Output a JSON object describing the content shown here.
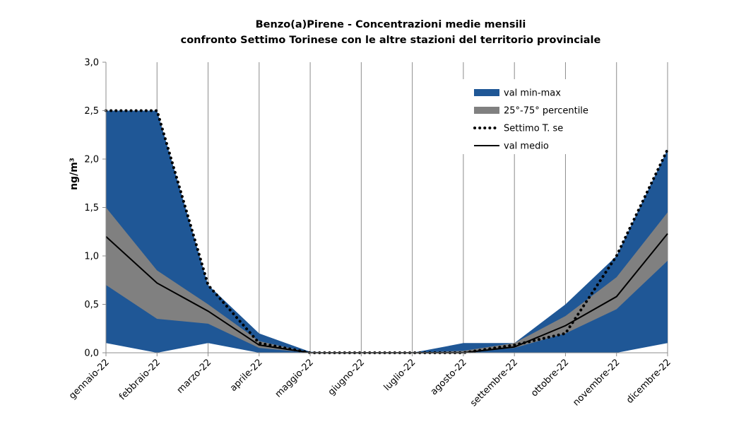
{
  "chart_data": {
    "type": "area",
    "title": "Benzo(a)Pirene - Concentrazioni medie mensili",
    "subtitle": "confronto Settimo Torinese con le altre stazioni del territorio provinciale",
    "ylabel": "ng/m³",
    "xlabel": "",
    "ylim": [
      0,
      3
    ],
    "yticks": [
      "0,0",
      "0,5",
      "1,0",
      "1,5",
      "2,0",
      "2,5",
      "3,0"
    ],
    "ytick_values": [
      0,
      0.5,
      1,
      1.5,
      2,
      2.5,
      3
    ],
    "categories": [
      "gennaio-22",
      "febbraio-22",
      "marzo-22",
      "aprile-22",
      "maggio-22",
      "giugno-22",
      "luglio-22",
      "agosto-22",
      "settembre-22",
      "ottobre-22",
      "novembre-22",
      "dicembre-22"
    ],
    "grid": "vertical",
    "legend_position": "top-right",
    "series": [
      {
        "name": "val min-max",
        "kind": "band",
        "color": "#1f5796",
        "low": [
          0.1,
          0.0,
          0.1,
          0.0,
          0.0,
          0.0,
          0.0,
          0.0,
          0.0,
          0.0,
          0.0,
          0.1
        ],
        "high": [
          2.5,
          2.5,
          0.7,
          0.2,
          0.01,
          0.0,
          0.0,
          0.1,
          0.1,
          0.5,
          1.0,
          2.1
        ]
      },
      {
        "name": "25°-75° percentile",
        "kind": "band",
        "color": "#808080",
        "low": [
          0.7,
          0.35,
          0.3,
          0.05,
          0.0,
          0.0,
          0.0,
          0.0,
          0.05,
          0.2,
          0.45,
          0.95
        ],
        "high": [
          1.5,
          0.85,
          0.5,
          0.12,
          0.0,
          0.0,
          0.0,
          0.02,
          0.1,
          0.38,
          0.78,
          1.45
        ]
      },
      {
        "name": "Settimo T. se",
        "kind": "dotted-line",
        "color": "#000000",
        "values": [
          2.5,
          2.5,
          0.7,
          0.1,
          0.0,
          0.0,
          0.0,
          0.0,
          0.08,
          0.2,
          1.0,
          2.1
        ]
      },
      {
        "name": "val medio",
        "kind": "line",
        "color": "#000000",
        "values": [
          1.2,
          0.72,
          0.43,
          0.08,
          0.0,
          0.0,
          0.0,
          0.0,
          0.06,
          0.28,
          0.58,
          1.23
        ]
      }
    ]
  }
}
